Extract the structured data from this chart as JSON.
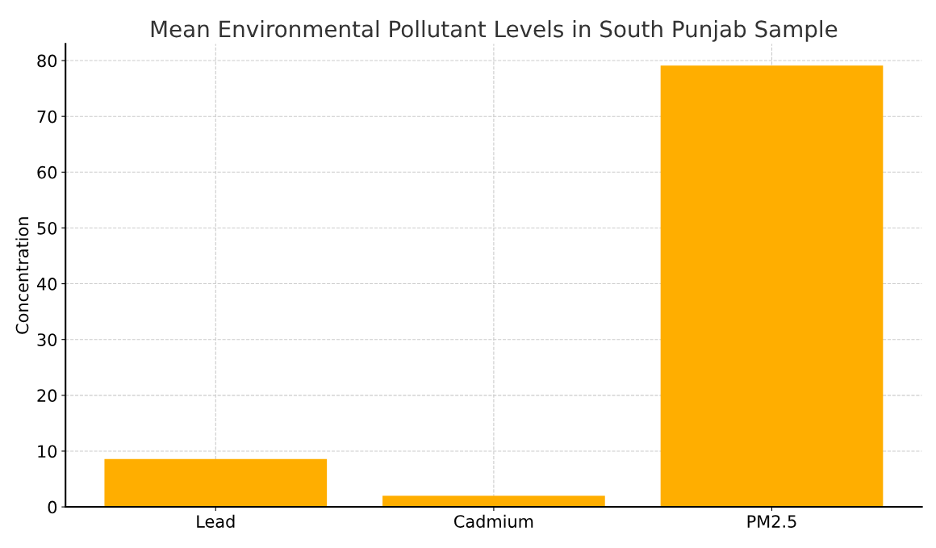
{
  "chart_data": {
    "type": "bar",
    "title": "Mean Environmental Pollutant Levels in South Punjab Sample",
    "ylabel": "Concentration",
    "categories": [
      "Lead",
      "Cadmium",
      "PM2.5"
    ],
    "values": [
      8.6,
      2.0,
      79.1
    ],
    "color": "#ffae00",
    "ylim": [
      0,
      83
    ],
    "yticks": [
      0,
      10,
      20,
      30,
      40,
      50,
      60,
      70,
      80
    ],
    "grid": true
  }
}
